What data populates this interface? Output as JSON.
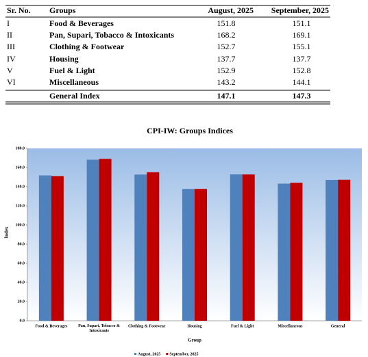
{
  "table": {
    "header": [
      "Sr. No.",
      "Groups",
      "August, 2025",
      "September, 2025"
    ],
    "rows": [
      [
        "I",
        "Food & Beverages",
        151.8,
        151.1
      ],
      [
        "II",
        "Pan, Supari, Tobacco & Intoxicants",
        168.2,
        169.1
      ],
      [
        "III",
        "Clothing & Footwear",
        152.7,
        155.1
      ],
      [
        "IV",
        "Housing",
        137.7,
        137.7
      ],
      [
        "V",
        "Fuel & Light",
        152.9,
        152.8
      ],
      [
        "VI",
        "Miscellaneous",
        143.2,
        144.1
      ]
    ],
    "footer": {
      "label": "General Index",
      "values": [
        147.1,
        147.3
      ]
    }
  },
  "chart_data": {
    "type": "bar",
    "title": "CPI-IW: Groups Indices",
    "x_label": "Group",
    "y_label": "Index",
    "categories": [
      "Food & Beverages",
      "Pan, Supari, Tobacco & Intoxicants",
      "Clothing & Footwear",
      "Housing",
      "Fuel & Light",
      "Miscellaneous",
      "General"
    ],
    "series": [
      {
        "name": "August, 2025",
        "color": "#4f81bd",
        "values": [
          151.8,
          168.2,
          152.7,
          137.7,
          152.9,
          143.2,
          147.1
        ]
      },
      {
        "name": "September, 2025",
        "color": "#c00000",
        "values": [
          151.1,
          169.1,
          155.1,
          137.7,
          152.8,
          144.1,
          147.3
        ]
      }
    ],
    "ylim": [
      0,
      180
    ],
    "yticks": [
      {
        "value": 0,
        "label": "0.0"
      },
      {
        "value": 20,
        "label": "20.0"
      },
      {
        "value": 40,
        "label": "40.0"
      },
      {
        "value": 60,
        "label": "60.0"
      },
      {
        "value": 80,
        "label": "80.0"
      },
      {
        "value": 100,
        "label": "100.0"
      },
      {
        "value": 120,
        "label": "120.0"
      },
      {
        "value": 140,
        "label": "140.0"
      },
      {
        "value": 160,
        "label": "160.0"
      },
      {
        "value": 180,
        "label": "180.0"
      }
    ],
    "grid": false,
    "legend": "bottom"
  }
}
